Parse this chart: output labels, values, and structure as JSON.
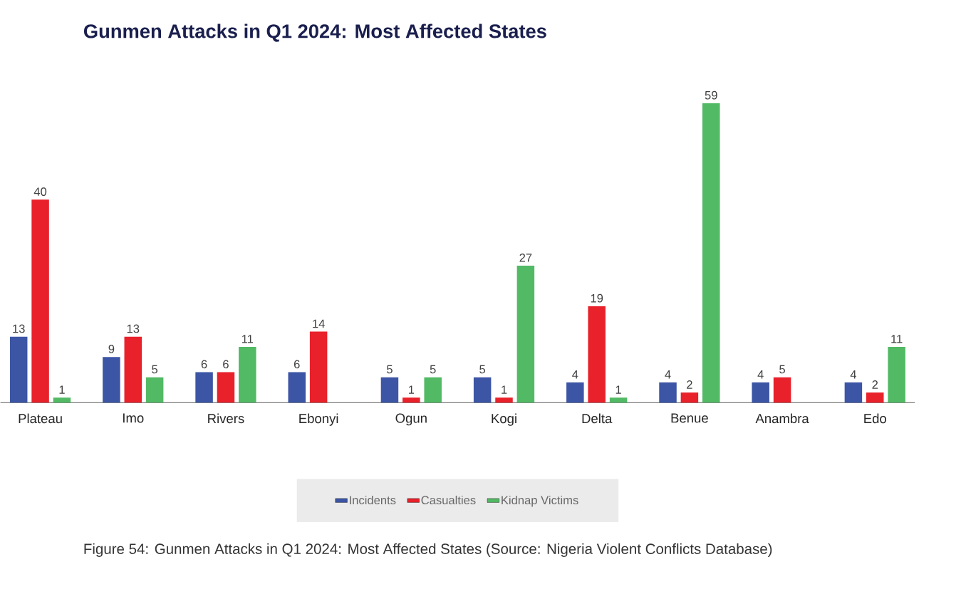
{
  "chart_data": {
    "type": "bar",
    "title": "Gunmen Attacks in Q1 2024: Most Affected States",
    "categories": [
      "Plateau",
      "Imo",
      "Rivers",
      "Ebonyi",
      "Ogun",
      "Kogi",
      "Delta",
      "Benue",
      "Anambra",
      "Edo"
    ],
    "series": [
      {
        "name": "Incidents",
        "color": "#3c55a5",
        "values": [
          13,
          9,
          6,
          6,
          5,
          5,
          4,
          4,
          4,
          4
        ]
      },
      {
        "name": "Casualties",
        "color": "#e8212b",
        "values": [
          40,
          13,
          6,
          14,
          1,
          1,
          19,
          2,
          5,
          2
        ]
      },
      {
        "name": "Kidnap Victims",
        "color": "#52b964",
        "values": [
          1,
          5,
          11,
          null,
          5,
          27,
          1,
          59,
          null,
          11
        ]
      }
    ],
    "data_labels": true,
    "legend": "bottom",
    "annotations": [
      "Figure 54: Gunmen Attacks in Q1 2024: Most Affected States (Source: Nigeria Violent Conflicts Database)"
    ]
  }
}
